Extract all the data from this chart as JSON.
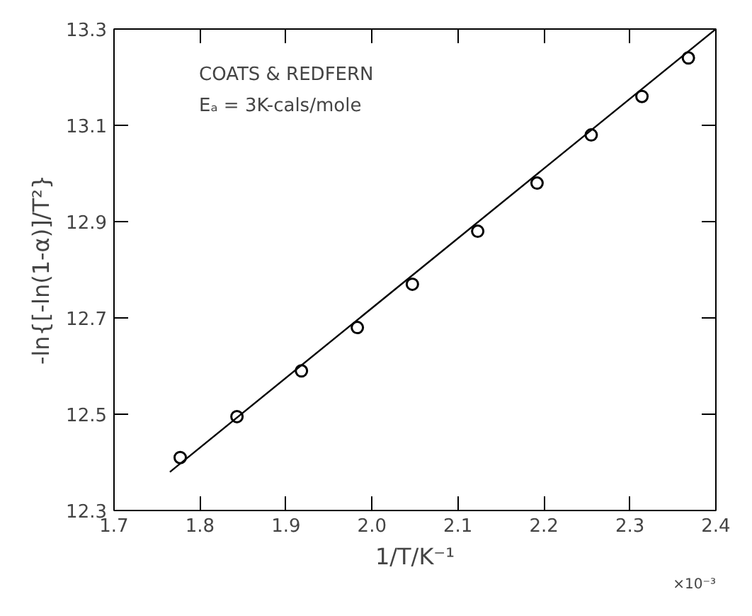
{
  "chart_data": {
    "type": "scatter",
    "xlabel": "1/T/K⁻¹",
    "ylabel": "-ln{[-ln(1-α)]/T²}",
    "annotations": [
      "COATS & REDFERN",
      "Eₐ = 3K-cals/mole",
      "×10⁻³"
    ],
    "series": [
      {
        "color": "#000000",
        "marker": "circle",
        "x": [
          1.777,
          1.843,
          1.918,
          1.983,
          2.047,
          2.123,
          2.192,
          2.255,
          2.314,
          2.368
        ],
        "values": [
          12.41,
          12.495,
          12.59,
          12.68,
          12.77,
          12.88,
          12.98,
          13.08,
          13.16,
          13.24
        ]
      },
      {
        "type": "line",
        "color": "#000000",
        "x": [
          1.765,
          2.4
        ],
        "values": [
          12.38,
          13.3
        ]
      }
    ],
    "xlim": [
      1.7,
      2.4
    ],
    "ylim": [
      12.3,
      13.3
    ],
    "xticks": [
      {
        "value": 1.7,
        "label": "1.7"
      },
      {
        "value": 1.8,
        "label": "1.8"
      },
      {
        "value": 1.9,
        "label": "1.9"
      },
      {
        "value": 2.0,
        "label": "2.0"
      },
      {
        "value": 2.1,
        "label": "2.1"
      },
      {
        "value": 2.2,
        "label": "2.2"
      },
      {
        "value": 2.3,
        "label": "2.3"
      },
      {
        "value": 2.4,
        "label": "2.4"
      }
    ],
    "yticks": [
      12.3,
      12.5,
      12.7,
      12.9,
      13.1,
      13.3
    ],
    "grid": false
  }
}
